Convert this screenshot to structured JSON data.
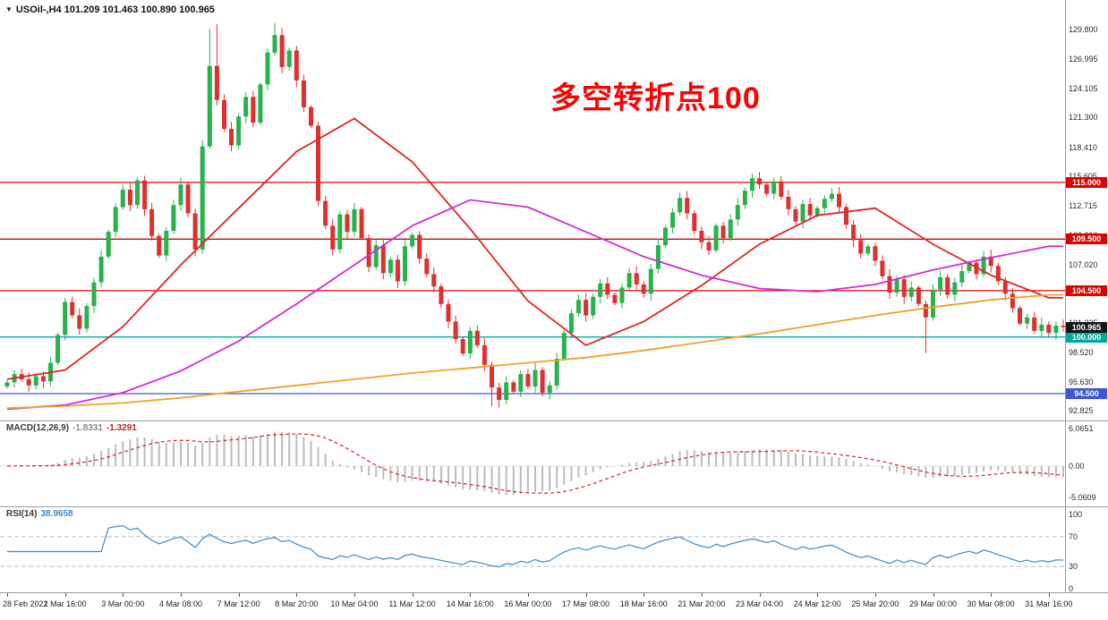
{
  "header": {
    "collapse_icon": "▼",
    "symbol_info": "USOil-,H4 101.209 101.463 100.890 100.965"
  },
  "annotation": {
    "text": "多空转折点100",
    "color": "#ff0000"
  },
  "indicators": {
    "macd": {
      "name": "MACD(12,26,9)",
      "value_main": "-1.8331",
      "value_signal": "-1.3291"
    },
    "rsi": {
      "name": "RSI(14)",
      "value": "38.9658"
    }
  },
  "colors": {
    "candle_up": "#27b24a",
    "candle_down": "#df2f2f",
    "ma_fast": "#e02525",
    "ma_mid": "#d32bd3",
    "ma_slow": "#eda32b",
    "macd_hist": "#bcbcbc",
    "macd_signal": "#cc2a2a",
    "macd_value_text": "#8a8a8a",
    "signal_value_text": "#c22222",
    "rsi_line": "#3f8ac2",
    "rsi_level": "#b6bdd1",
    "tag_black": "#151515",
    "axis_text": "#2b2b2b",
    "separator": "#9b9b9b"
  },
  "chart_data": [
    {
      "type": "candlestick",
      "title": "USOil- H4",
      "open_first": 95.2,
      "closes": [
        95.6,
        96.4,
        95.9,
        95.3,
        96.2,
        95.7,
        97.5,
        100.2,
        103.4,
        102.1,
        100.8,
        103.0,
        105.3,
        107.8,
        110.2,
        112.6,
        114.3,
        112.8,
        115.2,
        112.4,
        109.8,
        107.9,
        110.3,
        112.8,
        114.8,
        112.0,
        108.5,
        118.5,
        126.3,
        123.0,
        120.2,
        118.6,
        121.4,
        123.3,
        120.8,
        124.5,
        127.6,
        129.3,
        126.2,
        127.8,
        124.9,
        122.3,
        120.5,
        113.2,
        110.8,
        108.5,
        111.9,
        110.2,
        112.4,
        109.6,
        106.8,
        108.9,
        106.2,
        107.5,
        105.4,
        108.8,
        109.9,
        107.6,
        106.1,
        104.9,
        103.2,
        101.5,
        99.8,
        98.4,
        100.6,
        99.2,
        97.3,
        95.1,
        93.9,
        95.6,
        94.7,
        96.4,
        95.2,
        96.8,
        94.6,
        95.3,
        97.9,
        100.4,
        102.3,
        103.6,
        102.1,
        103.9,
        105.2,
        104.1,
        103.3,
        104.8,
        106.2,
        105.1,
        104.2,
        106.6,
        108.9,
        110.6,
        112.1,
        113.5,
        112.0,
        110.3,
        109.2,
        108.4,
        110.8,
        109.6,
        111.4,
        112.8,
        114.2,
        115.4,
        114.8,
        113.9,
        115.1,
        113.6,
        112.4,
        111.2,
        112.9,
        111.8,
        112.5,
        113.4,
        113.9,
        112.6,
        110.9,
        109.4,
        108.1,
        108.8,
        107.4,
        105.9,
        104.3,
        105.6,
        103.9,
        104.8,
        103.2,
        101.9,
        104.6,
        105.8,
        104.1,
        105.3,
        106.4,
        107.2,
        106.1,
        107.8,
        106.9,
        105.4,
        104.2,
        102.8,
        101.3,
        101.9,
        100.6,
        101.2,
        100.4,
        101.1,
        100.965
      ],
      "wick_overrides": {
        "28": {
          "high": 129.9
        },
        "29": {
          "high": 130.35
        },
        "37": {
          "high": 130.45
        },
        "67": {
          "low": 93.3
        },
        "68": {
          "low": 93.15
        },
        "127": {
          "low": 98.45
        }
      },
      "last_price": 100.965,
      "last_price_label": "100.965",
      "ylim": [
        91.9,
        132.7
      ],
      "y_tick_labels": [
        "129.800",
        "126.995",
        "124.105",
        "121.300",
        "118.410",
        "115.605",
        "112.715",
        "109.910",
        "107.020",
        "104.215",
        "101.325",
        "98.520",
        "95.630",
        "92.825"
      ],
      "x_tick_interval_bars": 8,
      "x_tick_labels": [
        "28 Feb 2022",
        "1 Mar 16:00",
        "3 Mar 00:00",
        "4 Mar 08:00",
        "7 Mar 12:00",
        "8 Mar 20:00",
        "10 Mar 04:00",
        "11 Mar 12:00",
        "14 Mar 16:00",
        "16 Mar 00:00",
        "17 Mar 08:00",
        "18 Mar 16:00",
        "21 Mar 20:00",
        "23 Mar 04:00",
        "24 Mar 12:00",
        "25 Mar 20:00",
        "29 Mar 00:00",
        "30 Mar 08:00",
        "31 Mar 16:00"
      ],
      "hlines": [
        {
          "value": 115.0,
          "label": "115.000",
          "color": "#e00000"
        },
        {
          "value": 109.5,
          "label": "109.500",
          "color": "#e00000"
        },
        {
          "value": 104.5,
          "label": "104.500",
          "color": "#e00000"
        },
        {
          "value": 100.0,
          "label": "100.000",
          "color": "#00a99c"
        },
        {
          "value": 94.5,
          "label": "94.500",
          "color": "#3d56d6"
        }
      ],
      "moving_averages": [
        {
          "name": "ma-fast-red",
          "color": "#e02525",
          "sample_interval_bars": 8,
          "values": [
            95.9,
            96.8,
            101.0,
            107.0,
            112.5,
            118.0,
            121.2,
            117.0,
            110.5,
            103.5,
            99.2,
            101.5,
            105.0,
            109.0,
            111.8,
            112.5,
            109.0,
            106.0,
            103.8
          ]
        },
        {
          "name": "ma-mid-magenta",
          "color": "#d32bd3",
          "sample_interval_bars": 8,
          "values": [
            93.0,
            93.4,
            94.6,
            96.7,
            99.6,
            103.2,
            107.0,
            110.8,
            113.3,
            112.6,
            110.2,
            107.8,
            106.0,
            104.7,
            104.4,
            105.1,
            106.5,
            107.7,
            108.8
          ]
        },
        {
          "name": "ma-slow-orange",
          "color": "#eda32b",
          "sample_interval_bars": 8,
          "values": [
            93.1,
            93.3,
            93.6,
            94.1,
            94.7,
            95.3,
            95.9,
            96.5,
            97.0,
            97.5,
            98.0,
            98.7,
            99.5,
            100.3,
            101.2,
            102.1,
            102.9,
            103.6,
            104.1
          ]
        }
      ]
    },
    {
      "type": "bar",
      "name": "MACD(12,26,9)",
      "values_displayed": [
        "-1.8331",
        "-1.3291"
      ],
      "derived_from": "EMA12-EMA26 of chart 0 closes, signal = SMA9 of MACD",
      "ylim": [
        -6.5,
        7.36
      ],
      "y_tick_labels": [
        "6.0651",
        "0.00",
        "-5.0609"
      ],
      "y_tick_values": [
        6.0651,
        0,
        -5.0609
      ]
    },
    {
      "type": "line",
      "name": "RSI(14)",
      "value_displayed": "38.9658",
      "derived_from": "RSI(14) of chart 0 closes",
      "ylim": [
        -4.8,
        110.8
      ],
      "levels": [
        70,
        30
      ],
      "y_tick_labels": [
        "100",
        "70",
        "30",
        "0"
      ],
      "y_tick_values": [
        100,
        70,
        30,
        0
      ]
    }
  ]
}
